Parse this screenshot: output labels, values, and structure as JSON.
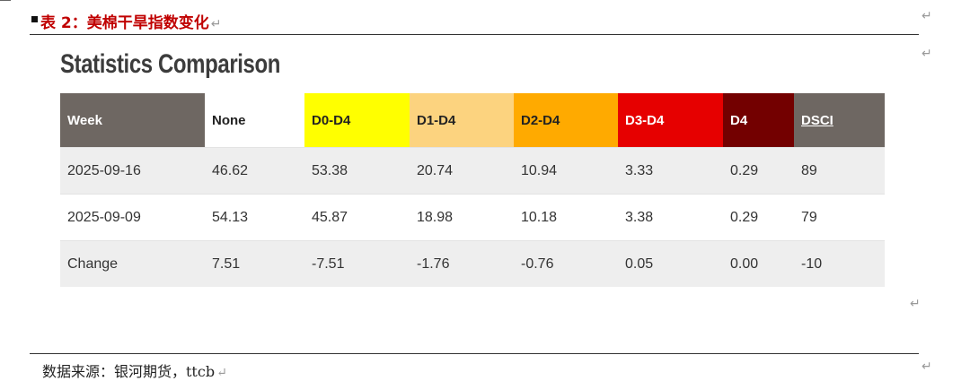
{
  "caption": {
    "text": "表 2：美棉干旱指数变化",
    "color": "#c00000"
  },
  "paragraph_mark": "↵",
  "section_title": "Statistics Comparison",
  "table": {
    "headers": [
      {
        "label": "Week",
        "bg": "#6e6762",
        "fg": "#ffffff"
      },
      {
        "label": "None",
        "bg": "#ffffff",
        "fg": "#222222"
      },
      {
        "label": "D0-D4",
        "bg": "#ffff00",
        "fg": "#222222"
      },
      {
        "label": "D1-D4",
        "bg": "#fcd37f",
        "fg": "#222222"
      },
      {
        "label": "D2-D4",
        "bg": "#ffaa00",
        "fg": "#222222"
      },
      {
        "label": "D3-D4",
        "bg": "#e60000",
        "fg": "#ffffff"
      },
      {
        "label": "D4",
        "bg": "#730000",
        "fg": "#ffffff"
      },
      {
        "label": "DSCI",
        "bg": "#6e6762",
        "fg": "#ffffff"
      }
    ],
    "rows": [
      [
        "2025-09-16",
        "46.62",
        "53.38",
        "20.74",
        "10.94",
        "3.33",
        "0.29",
        "89"
      ],
      [
        "2025-09-09",
        "54.13",
        "45.87",
        "18.98",
        "10.18",
        "3.38",
        "0.29",
        "79"
      ],
      [
        "Change",
        "7.51",
        "-7.51",
        "-1.76",
        "-0.76",
        "0.05",
        "0.00",
        "-10"
      ]
    ]
  },
  "source": "数据来源：银河期货，ttcb"
}
